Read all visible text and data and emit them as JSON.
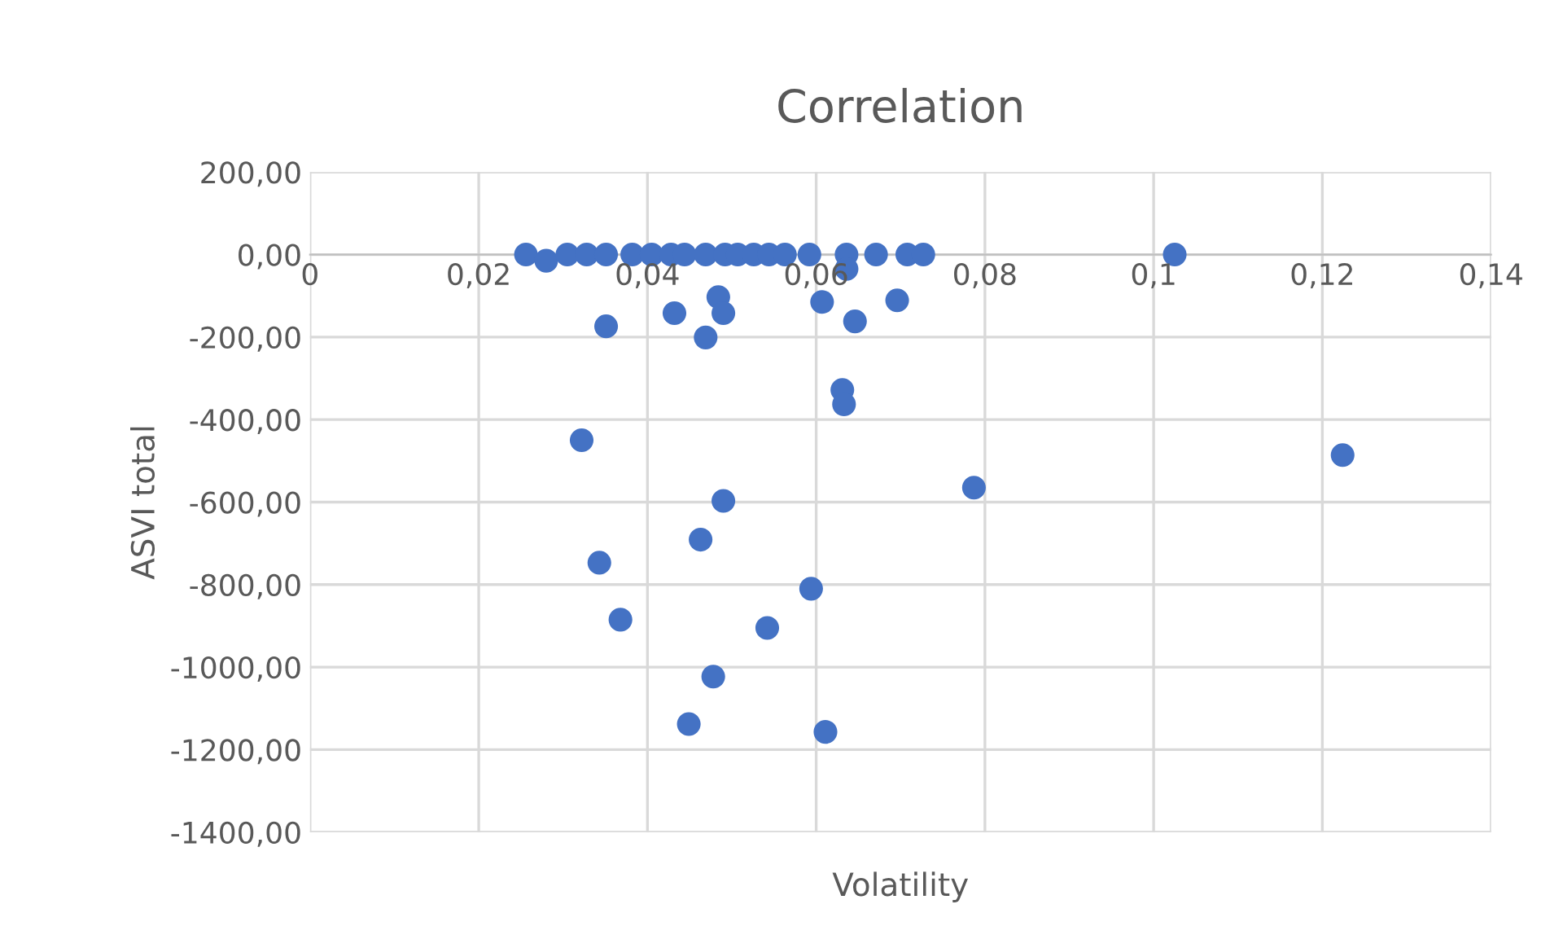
{
  "chart_data": {
    "type": "scatter",
    "title": "Correlation",
    "xlabel": "Volatility",
    "ylabel": "ASVI total",
    "series": [
      {
        "color": "#4472c4",
        "x": [
          0.0256,
          0.028,
          0.0305,
          0.0328,
          0.0351,
          0.0382,
          0.0405,
          0.0428,
          0.0444,
          0.0469,
          0.0492,
          0.0507,
          0.0526,
          0.0544,
          0.0563,
          0.0592,
          0.0636,
          0.0671,
          0.0708,
          0.0727,
          0.1025,
          0.0636,
          0.0484,
          0.049,
          0.0432,
          0.0351,
          0.0469,
          0.0607,
          0.0696,
          0.0646,
          0.0631,
          0.0633,
          0.0322,
          0.049,
          0.0787,
          0.1224,
          0.0463,
          0.0343,
          0.0368,
          0.0594,
          0.0542,
          0.0478,
          0.0449,
          0.0611
        ],
        "values": [
          0,
          -15,
          0,
          0,
          0,
          0,
          0,
          0,
          0,
          0,
          0,
          0,
          0,
          0,
          0,
          0,
          0,
          0,
          0,
          0,
          0,
          -35,
          -103,
          -142,
          -142,
          -174,
          -201,
          -115,
          -111,
          -162,
          -328,
          -363,
          -450,
          -597,
          -565,
          -486,
          -691,
          -747,
          -885,
          -810,
          -905,
          -1023,
          -1138,
          -1157
        ]
      }
    ],
    "xlim": [
      0,
      0.14
    ],
    "ylim": [
      -1400,
      200
    ],
    "xticks": [
      {
        "value": 0,
        "label": "0"
      },
      {
        "value": 0.02,
        "label": "0,02"
      },
      {
        "value": 0.04,
        "label": "0,04"
      },
      {
        "value": 0.06,
        "label": "0,06"
      },
      {
        "value": 0.08,
        "label": "0,08"
      },
      {
        "value": 0.1,
        "label": "0,1"
      },
      {
        "value": 0.12,
        "label": "0,12"
      },
      {
        "value": 0.14,
        "label": "0,14"
      }
    ],
    "yticks": [
      {
        "value": -1400,
        "label": "-1400,00"
      },
      {
        "value": -1200,
        "label": "-1200,00"
      },
      {
        "value": -1000,
        "label": "-1000,00"
      },
      {
        "value": -800,
        "label": "-800,00"
      },
      {
        "value": -600,
        "label": "-600,00"
      },
      {
        "value": -400,
        "label": "-400,00"
      },
      {
        "value": -200,
        "label": "-200,00"
      },
      {
        "value": 0,
        "label": "0,00"
      },
      {
        "value": 200,
        "label": "200,00"
      }
    ],
    "grid": true,
    "marker": "circle",
    "legend": false
  }
}
